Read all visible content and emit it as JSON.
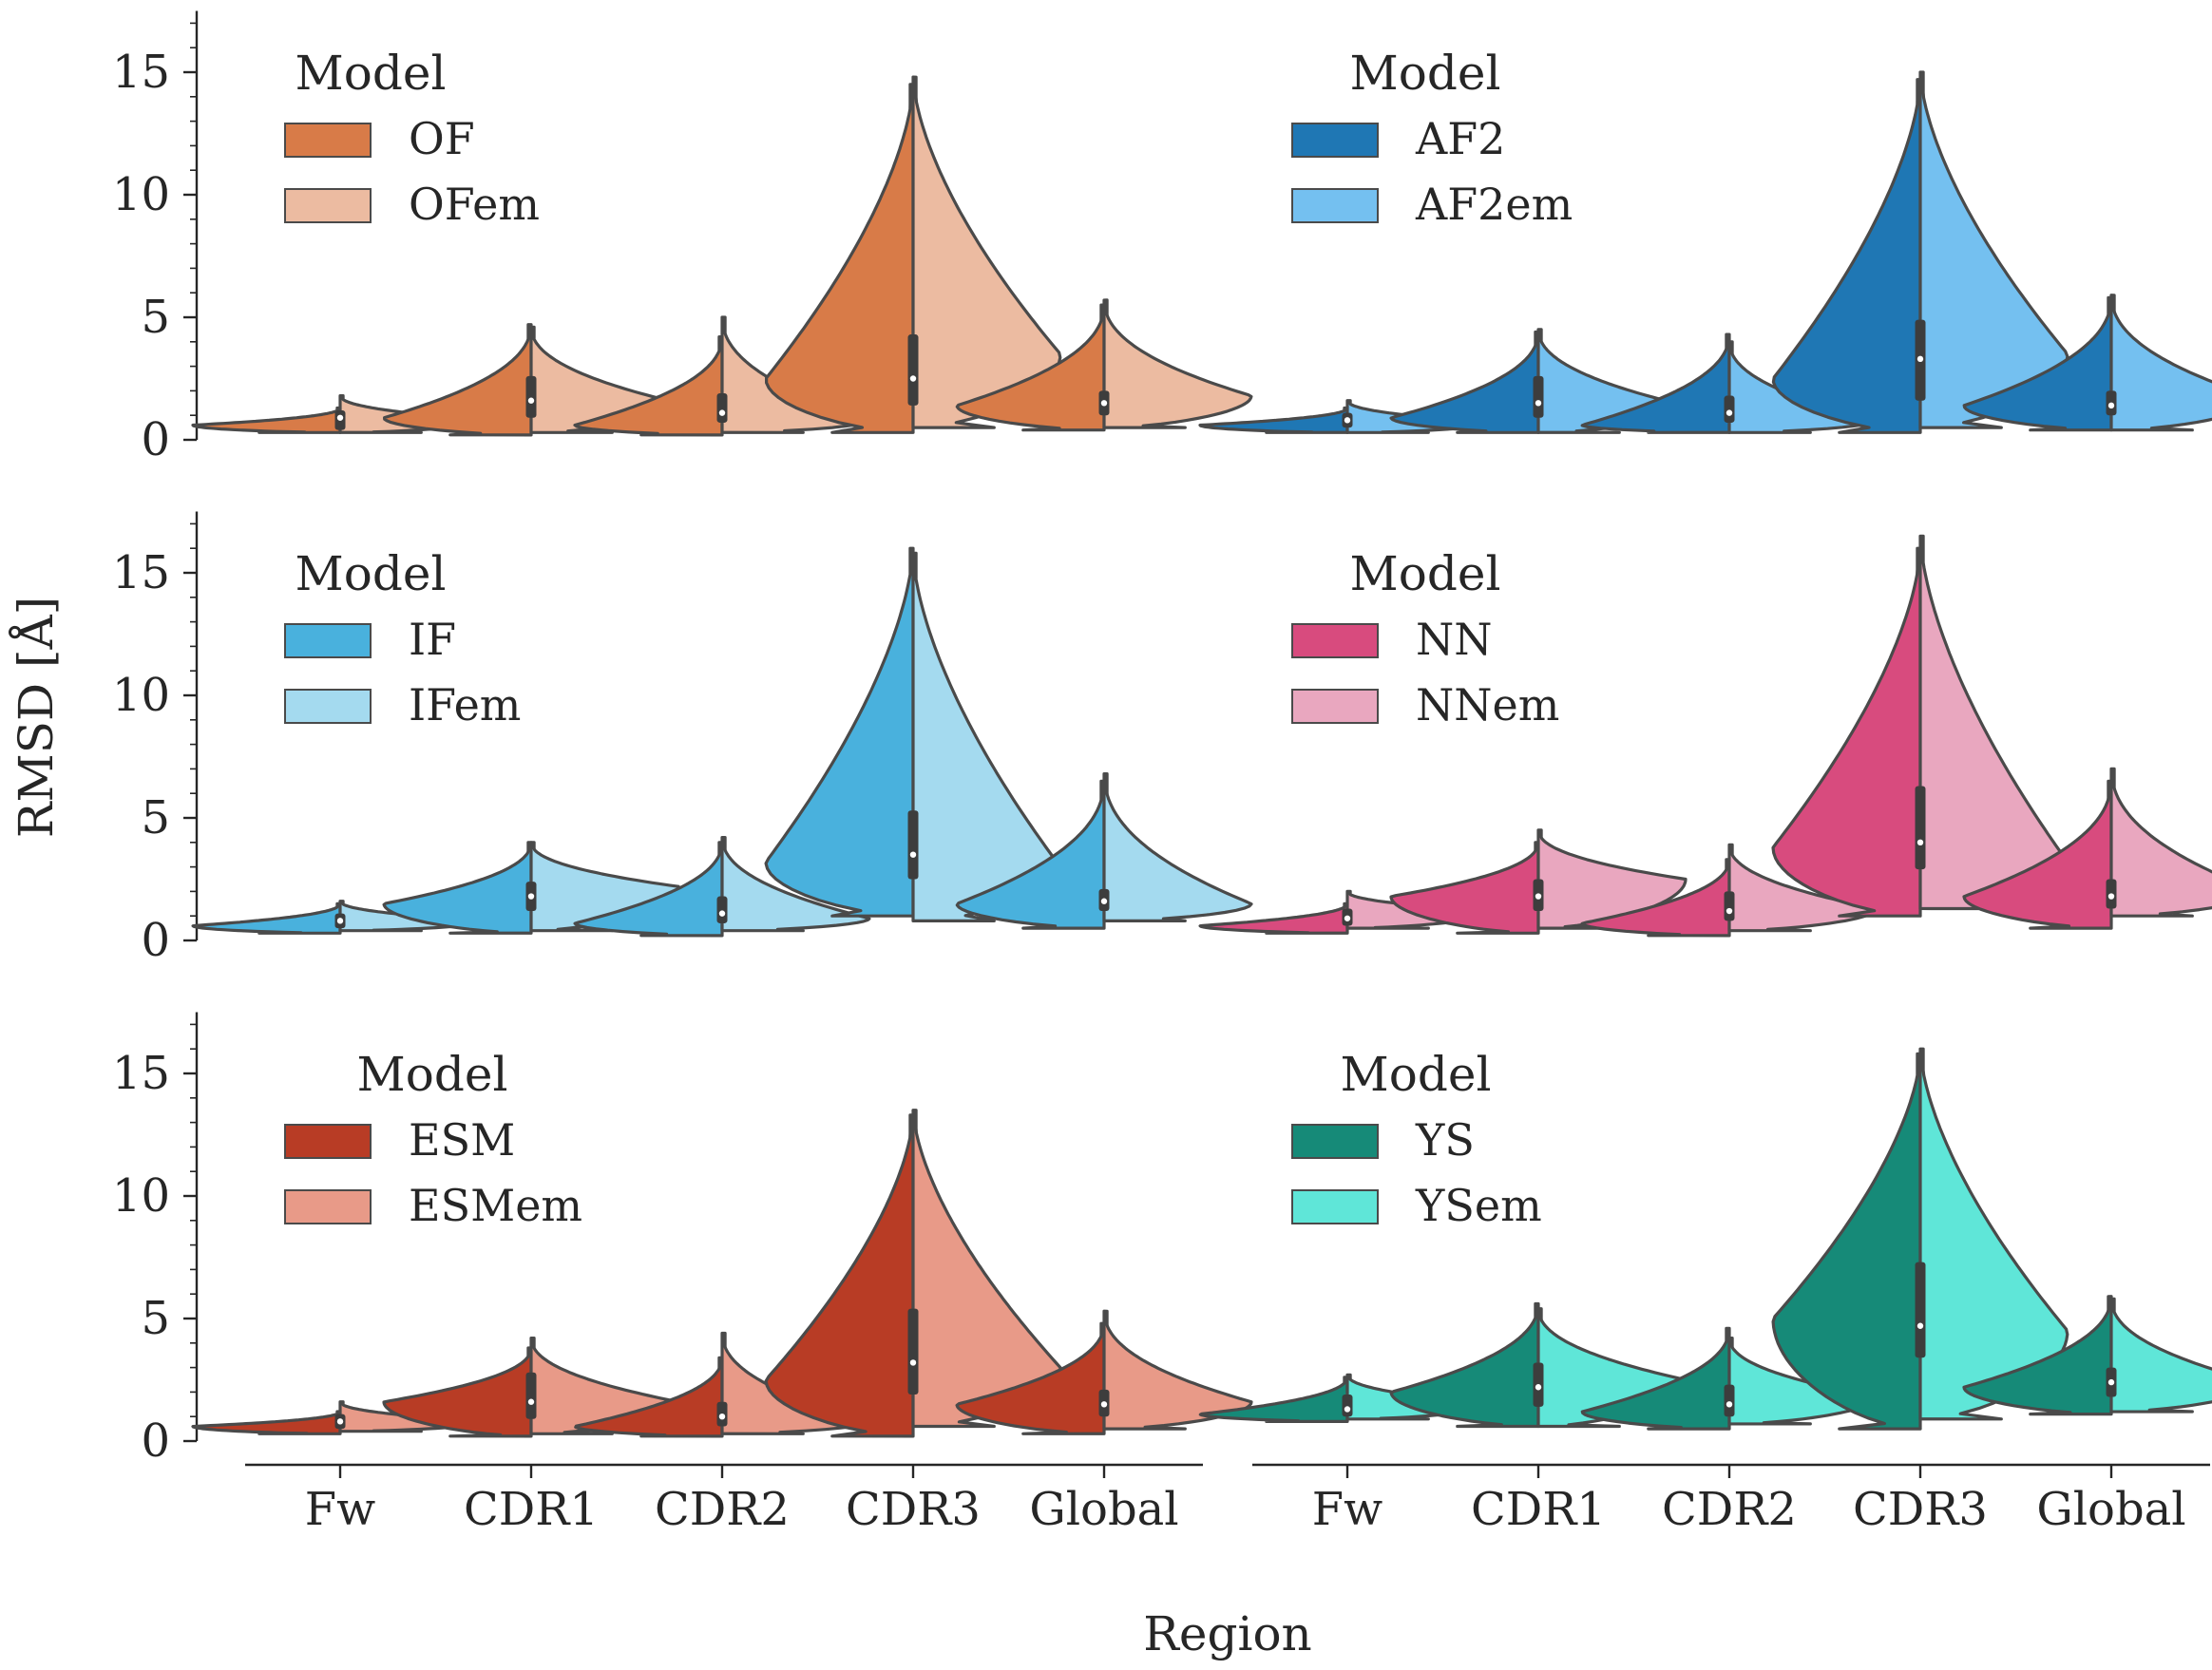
{
  "xlabel": "Region",
  "ylabel": "RMSD [Å]",
  "chart_data": {
    "type": "violin",
    "categories": [
      "Fw",
      "CDR1",
      "CDR2",
      "CDR3",
      "Global"
    ],
    "ylim": [
      0,
      17.5
    ],
    "yticks": [
      0,
      5,
      10,
      15
    ],
    "panels": [
      {
        "legend_title": "Model",
        "series": [
          {
            "name": "OF",
            "color": "#d87b48",
            "ranges": [
              [
                0.3,
                1.3
              ],
              [
                0.2,
                4.7
              ],
              [
                0.2,
                4.2
              ],
              [
                0.3,
                14.5
              ],
              [
                0.4,
                5.5
              ]
            ],
            "modes": [
              0.6,
              0.9,
              0.6,
              2.5,
              1.4
            ]
          },
          {
            "name": "OFem",
            "color": "#ecbba1",
            "ranges": [
              [
                0.3,
                1.8
              ],
              [
                0.3,
                4.6
              ],
              [
                0.3,
                5.0
              ],
              [
                0.5,
                14.8
              ],
              [
                0.5,
                5.7
              ]
            ],
            "modes": [
              0.8,
              1.5,
              0.8,
              3.5,
              1.8
            ]
          }
        ],
        "box": [
          [
            0.4,
            0.9,
            1.2
          ],
          [
            0.9,
            1.6,
            2.6
          ],
          [
            0.7,
            1.1,
            1.9
          ],
          [
            1.4,
            2.5,
            4.3
          ],
          [
            1.0,
            1.5,
            2.0
          ]
        ]
      },
      {
        "legend_title": "Model",
        "series": [
          {
            "name": "AF2",
            "color": "#1f77b4",
            "ranges": [
              [
                0.3,
                1.3
              ],
              [
                0.3,
                4.4
              ],
              [
                0.3,
                4.3
              ],
              [
                0.3,
                14.7
              ],
              [
                0.4,
                5.8
              ]
            ],
            "modes": [
              0.6,
              0.9,
              0.6,
              2.5,
              1.4
            ]
          },
          {
            "name": "AF2em",
            "color": "#74c0f0",
            "ranges": [
              [
                0.3,
                1.6
              ],
              [
                0.3,
                4.5
              ],
              [
                0.3,
                4.0
              ],
              [
                0.5,
                15.0
              ],
              [
                0.4,
                5.9
              ]
            ],
            "modes": [
              0.7,
              1.4,
              0.8,
              3.5,
              1.7
            ]
          }
        ],
        "box": [
          [
            0.5,
            0.8,
            1.1
          ],
          [
            0.9,
            1.5,
            2.6
          ],
          [
            0.7,
            1.1,
            1.8
          ],
          [
            1.6,
            3.3,
            4.9
          ],
          [
            1.0,
            1.4,
            2.0
          ]
        ]
      },
      {
        "legend_title": "Model",
        "series": [
          {
            "name": "IF",
            "color": "#49b1dd",
            "ranges": [
              [
                0.3,
                1.5
              ],
              [
                0.3,
                4.0
              ],
              [
                0.2,
                4.0
              ],
              [
                1.0,
                16.0
              ],
              [
                0.5,
                6.5
              ]
            ],
            "modes": [
              0.6,
              1.5,
              0.7,
              3.2,
              1.5
            ]
          },
          {
            "name": "IFem",
            "color": "#a4daef",
            "ranges": [
              [
                0.4,
                1.6
              ],
              [
                0.4,
                4.0
              ],
              [
                0.4,
                4.2
              ],
              [
                0.8,
                15.8
              ],
              [
                0.8,
                6.8
              ]
            ],
            "modes": [
              0.8,
              2.2,
              0.9,
              3.0,
              1.5
            ]
          }
        ],
        "box": [
          [
            0.5,
            0.8,
            1.1
          ],
          [
            1.2,
            1.8,
            2.4
          ],
          [
            0.7,
            1.1,
            1.8
          ],
          [
            2.5,
            3.5,
            5.3
          ],
          [
            1.2,
            1.6,
            2.1
          ]
        ]
      },
      {
        "legend_title": "Model",
        "series": [
          {
            "name": "NN",
            "color": "#d84b7e",
            "ranges": [
              [
                0.3,
                1.5
              ],
              [
                0.3,
                4.0
              ],
              [
                0.2,
                3.3
              ],
              [
                1.0,
                16.0
              ],
              [
                0.5,
                6.5
              ]
            ],
            "modes": [
              0.6,
              1.8,
              0.7,
              3.8,
              1.8
            ]
          },
          {
            "name": "NNem",
            "color": "#e9a7bf",
            "ranges": [
              [
                0.5,
                2.0
              ],
              [
                0.5,
                4.5
              ],
              [
                0.4,
                3.9
              ],
              [
                1.3,
                16.5
              ],
              [
                1.0,
                7.0
              ]
            ],
            "modes": [
              1.2,
              2.5,
              1.3,
              3.2,
              2.0
            ]
          }
        ],
        "box": [
          [
            0.6,
            0.9,
            1.3
          ],
          [
            1.2,
            1.8,
            2.5
          ],
          [
            0.8,
            1.2,
            2.0
          ],
          [
            2.9,
            4.0,
            6.3
          ],
          [
            1.3,
            1.8,
            2.5
          ]
        ]
      },
      {
        "legend_title": "Model",
        "series": [
          {
            "name": "ESM",
            "color": "#b83c25",
            "ranges": [
              [
                0.3,
                1.2
              ],
              [
                0.2,
                3.8
              ],
              [
                0.2,
                3.4
              ],
              [
                0.2,
                13.3
              ],
              [
                0.3,
                4.8
              ]
            ],
            "modes": [
              0.6,
              1.6,
              0.6,
              2.5,
              1.5
            ]
          },
          {
            "name": "ESMem",
            "color": "#e89a88",
            "ranges": [
              [
                0.4,
                1.6
              ],
              [
                0.3,
                4.2
              ],
              [
                0.3,
                4.4
              ],
              [
                0.6,
                13.5
              ],
              [
                0.5,
                5.3
              ]
            ],
            "modes": [
              0.8,
              1.6,
              0.8,
              3.0,
              1.6
            ]
          }
        ],
        "box": [
          [
            0.5,
            0.8,
            1.1
          ],
          [
            0.9,
            1.6,
            2.8
          ],
          [
            0.6,
            1.0,
            1.6
          ],
          [
            1.9,
            3.2,
            5.4
          ],
          [
            1.0,
            1.5,
            2.1
          ]
        ]
      },
      {
        "legend_title": "Model",
        "series": [
          {
            "name": "YS",
            "color": "#168a78",
            "ranges": [
              [
                0.8,
                2.6
              ],
              [
                0.6,
                5.6
              ],
              [
                0.5,
                4.6
              ],
              [
                0.5,
                15.8
              ],
              [
                1.1,
                5.9
              ]
            ],
            "modes": [
              1.1,
              2.0,
              1.2,
              5.0,
              2.2
            ]
          },
          {
            "name": "YSem",
            "color": "#5fe6d8",
            "ranges": [
              [
                0.9,
                2.7
              ],
              [
                0.6,
                5.4
              ],
              [
                0.7,
                4.2
              ],
              [
                0.9,
                16.0
              ],
              [
                1.2,
                5.8
              ]
            ],
            "modes": [
              1.5,
              2.5,
              1.8,
              4.5,
              2.4
            ]
          }
        ],
        "box": [
          [
            1.0,
            1.3,
            1.9
          ],
          [
            1.4,
            2.2,
            3.2
          ],
          [
            1.0,
            1.5,
            2.3
          ],
          [
            3.4,
            4.7,
            7.3
          ],
          [
            1.8,
            2.4,
            3.0
          ]
        ]
      }
    ]
  }
}
